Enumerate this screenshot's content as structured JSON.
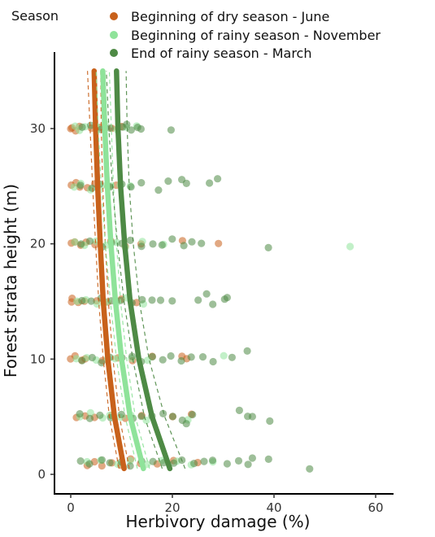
{
  "chart_data": {
    "type": "scatter",
    "xlabel": "Herbivory damage (%)",
    "ylabel": "Forest strata height (m)",
    "xlim": [
      -3,
      63
    ],
    "ylim": [
      -2,
      35.5
    ],
    "xticks": [
      0,
      20,
      40,
      60
    ],
    "yticks": [
      0,
      10,
      20,
      30
    ],
    "legend": {
      "title": "Season",
      "position": "top"
    },
    "series": [
      {
        "name": "Beginning of dry season - June",
        "color": "#c8611b",
        "fit": [
          [
            10.5,
            0.5
          ],
          [
            8.6,
            5
          ],
          [
            7.3,
            10
          ],
          [
            6.4,
            15
          ],
          [
            5.8,
            20
          ],
          [
            5.3,
            25
          ],
          [
            4.9,
            30
          ],
          [
            4.6,
            35
          ]
        ],
        "band_lower": [
          [
            9.5,
            0.5
          ],
          [
            7.6,
            5
          ],
          [
            6.4,
            10
          ],
          [
            5.5,
            15
          ],
          [
            4.9,
            20
          ],
          [
            4.3,
            25
          ],
          [
            3.8,
            30
          ],
          [
            3.3,
            35
          ]
        ],
        "band_upper": [
          [
            11.5,
            0.5
          ],
          [
            9.6,
            5
          ],
          [
            8.3,
            10
          ],
          [
            7.4,
            15
          ],
          [
            6.8,
            20
          ],
          [
            6.3,
            25
          ],
          [
            6.0,
            30
          ],
          [
            5.9,
            35
          ]
        ],
        "points": [
          [
            0,
            30
          ],
          [
            0.5,
            30
          ],
          [
            1,
            29.8
          ],
          [
            2,
            30.3
          ],
          [
            4,
            30
          ],
          [
            6,
            30.2
          ],
          [
            8,
            29.9
          ],
          [
            10,
            30.1
          ],
          [
            0,
            25
          ],
          [
            1,
            25.3
          ],
          [
            2,
            24.8
          ],
          [
            3,
            25
          ],
          [
            5,
            25.2
          ],
          [
            7,
            24.9
          ],
          [
            9,
            25.1
          ],
          [
            0,
            20
          ],
          [
            1,
            20.3
          ],
          [
            2,
            19.8
          ],
          [
            3,
            20.1
          ],
          [
            5,
            20
          ],
          [
            8,
            20.2
          ],
          [
            11,
            19.9
          ],
          [
            14,
            20.1
          ],
          [
            22,
            20.2
          ],
          [
            29,
            20
          ],
          [
            0,
            15
          ],
          [
            0.5,
            15.2
          ],
          [
            1.5,
            14.8
          ],
          [
            3,
            15
          ],
          [
            5,
            15.1
          ],
          [
            7,
            14.9
          ],
          [
            10,
            15.2
          ],
          [
            13,
            15
          ],
          [
            0,
            10
          ],
          [
            1,
            10.2
          ],
          [
            2,
            9.8
          ],
          [
            3,
            10.1
          ],
          [
            6,
            10
          ],
          [
            9,
            10.2
          ],
          [
            12,
            9.9
          ],
          [
            16,
            10.1
          ],
          [
            22,
            10.2
          ],
          [
            23,
            10
          ],
          [
            1,
            5
          ],
          [
            3,
            5.2
          ],
          [
            5,
            4.9
          ],
          [
            8,
            5.1
          ],
          [
            11,
            5
          ],
          [
            14,
            5.2
          ],
          [
            20,
            5
          ],
          [
            24,
            5.3
          ],
          [
            3,
            0.7
          ],
          [
            5,
            1
          ],
          [
            6,
            0.8
          ],
          [
            8,
            1.1
          ],
          [
            10,
            0.9
          ],
          [
            12,
            1.2
          ],
          [
            14,
            0.8
          ],
          [
            17,
            1
          ],
          [
            20,
            1.1
          ],
          [
            25,
            0.9
          ]
        ]
      },
      {
        "name": "Beginning of rainy season - November",
        "color": "#8fe39a",
        "fit": [
          [
            14.3,
            0.5
          ],
          [
            11.7,
            5
          ],
          [
            10.0,
            10
          ],
          [
            8.8,
            15
          ],
          [
            7.9,
            20
          ],
          [
            7.2,
            25
          ],
          [
            6.7,
            30
          ],
          [
            6.3,
            35
          ]
        ],
        "band_lower": [
          [
            13.1,
            0.5
          ],
          [
            10.7,
            5
          ],
          [
            9.0,
            10
          ],
          [
            7.8,
            15
          ],
          [
            6.8,
            20
          ],
          [
            6.0,
            25
          ],
          [
            5.4,
            30
          ],
          [
            5.0,
            35
          ]
        ],
        "band_upper": [
          [
            15.5,
            0.5
          ],
          [
            12.7,
            5
          ],
          [
            11.0,
            10
          ],
          [
            9.8,
            15
          ],
          [
            9.0,
            20
          ],
          [
            8.4,
            25
          ],
          [
            8.0,
            30
          ],
          [
            7.6,
            35
          ]
        ],
        "points": [
          [
            1,
            30.2
          ],
          [
            2,
            29.8
          ],
          [
            3,
            30.1
          ],
          [
            5,
            30
          ],
          [
            7,
            30.3
          ],
          [
            9,
            29.8
          ],
          [
            11,
            30
          ],
          [
            13,
            30.2
          ],
          [
            1,
            25
          ],
          [
            2,
            25.3
          ],
          [
            4,
            24.8
          ],
          [
            6,
            25.1
          ],
          [
            8,
            25
          ],
          [
            10,
            25.2
          ],
          [
            12,
            24.9
          ],
          [
            1,
            20.1
          ],
          [
            3,
            19.9
          ],
          [
            5,
            20.2
          ],
          [
            7,
            20
          ],
          [
            9,
            20.1
          ],
          [
            11,
            19.8
          ],
          [
            14,
            20.2
          ],
          [
            18,
            20
          ],
          [
            55,
            19.9
          ],
          [
            1,
            15
          ],
          [
            3,
            15.2
          ],
          [
            5,
            14.9
          ],
          [
            7,
            15.1
          ],
          [
            9,
            15
          ],
          [
            11,
            15.2
          ],
          [
            14,
            14.8
          ],
          [
            1,
            10
          ],
          [
            3,
            10.2
          ],
          [
            5,
            9.9
          ],
          [
            7,
            10.1
          ],
          [
            9,
            10
          ],
          [
            12,
            10.2
          ],
          [
            15,
            9.8
          ],
          [
            30,
            10.2
          ],
          [
            2,
            5
          ],
          [
            4,
            5.2
          ],
          [
            6,
            4.9
          ],
          [
            8,
            5.1
          ],
          [
            10,
            5
          ],
          [
            12,
            5.2
          ],
          [
            15,
            4.8
          ],
          [
            23,
            4.7
          ],
          [
            3,
            1
          ],
          [
            6,
            1.2
          ],
          [
            9,
            0.9
          ],
          [
            12,
            1.1
          ],
          [
            15,
            0.8
          ],
          [
            18,
            1.2
          ],
          [
            21,
            1
          ],
          [
            24,
            0.9
          ],
          [
            28,
            1.1
          ]
        ]
      },
      {
        "name": "End of rainy season - March",
        "color": "#4e8a45",
        "fit": [
          [
            19.5,
            0.5
          ],
          [
            16.0,
            5
          ],
          [
            13.4,
            10
          ],
          [
            11.7,
            15
          ],
          [
            10.6,
            20
          ],
          [
            9.8,
            25
          ],
          [
            9.3,
            30
          ],
          [
            9.0,
            35
          ]
        ],
        "band_lower": [
          [
            18.0,
            0.5
          ],
          [
            14.5,
            5
          ],
          [
            12.2,
            10
          ],
          [
            10.5,
            15
          ],
          [
            9.2,
            20
          ],
          [
            8.2,
            25
          ],
          [
            7.5,
            30
          ],
          [
            7.0,
            35
          ]
        ],
        "band_upper": [
          [
            22.5,
            0.5
          ],
          [
            18.5,
            5
          ],
          [
            15.4,
            10
          ],
          [
            13.5,
            15
          ],
          [
            12.3,
            20
          ],
          [
            11.5,
            25
          ],
          [
            11.1,
            30
          ],
          [
            10.9,
            35
          ]
        ],
        "points": [
          [
            2,
            30
          ],
          [
            4,
            30.2
          ],
          [
            6,
            29.8
          ],
          [
            8,
            30.1
          ],
          [
            10,
            30
          ],
          [
            11,
            30.3
          ],
          [
            12,
            29.8
          ],
          [
            13,
            30.1
          ],
          [
            14,
            30
          ],
          [
            19.5,
            30
          ],
          [
            2,
            25.2
          ],
          [
            4,
            24.8
          ],
          [
            6,
            25.1
          ],
          [
            8,
            25
          ],
          [
            10,
            25.3
          ],
          [
            12,
            24.9
          ],
          [
            14,
            25.2
          ],
          [
            17,
            24.7
          ],
          [
            19,
            25.5
          ],
          [
            22,
            25.6
          ],
          [
            23,
            25.3
          ],
          [
            27,
            25.3
          ],
          [
            29,
            25.6
          ],
          [
            2,
            20
          ],
          [
            4,
            20.2
          ],
          [
            6,
            19.8
          ],
          [
            8,
            20.1
          ],
          [
            10,
            20
          ],
          [
            12,
            20.2
          ],
          [
            14,
            19.9
          ],
          [
            16,
            20.1
          ],
          [
            18,
            20
          ],
          [
            20,
            20.3
          ],
          [
            22,
            19.8
          ],
          [
            24,
            20.1
          ],
          [
            26,
            20
          ],
          [
            39,
            19.8
          ],
          [
            2,
            15.1
          ],
          [
            4,
            14.9
          ],
          [
            6,
            15.2
          ],
          [
            8,
            15
          ],
          [
            10,
            15.1
          ],
          [
            12,
            14.8
          ],
          [
            14,
            15.2
          ],
          [
            16,
            15
          ],
          [
            18,
            15.1
          ],
          [
            20,
            14.9
          ],
          [
            25,
            15
          ],
          [
            27,
            15.6
          ],
          [
            28,
            14.8
          ],
          [
            30,
            15.3
          ],
          [
            31,
            15.2
          ],
          [
            2,
            10
          ],
          [
            4,
            10.2
          ],
          [
            6,
            9.8
          ],
          [
            8,
            10.1
          ],
          [
            10,
            10
          ],
          [
            12,
            10.2
          ],
          [
            14,
            9.9
          ],
          [
            16,
            10.1
          ],
          [
            18,
            10
          ],
          [
            20,
            10.2
          ],
          [
            22,
            9.8
          ],
          [
            24,
            10.1
          ],
          [
            26,
            10.2
          ],
          [
            28,
            9.9
          ],
          [
            32,
            10.1
          ],
          [
            35,
            10.6
          ],
          [
            2,
            5.2
          ],
          [
            4,
            4.8
          ],
          [
            6,
            5.1
          ],
          [
            8,
            5
          ],
          [
            10,
            5.2
          ],
          [
            12,
            4.9
          ],
          [
            14,
            5.1
          ],
          [
            16,
            5
          ],
          [
            18,
            5.2
          ],
          [
            20,
            5
          ],
          [
            22,
            4.8
          ],
          [
            23,
            4.4
          ],
          [
            24,
            5.1
          ],
          [
            33,
            5.6
          ],
          [
            35,
            5.1
          ],
          [
            36,
            5
          ],
          [
            39,
            4.5
          ],
          [
            2,
            1.1
          ],
          [
            4,
            0.9
          ],
          [
            6,
            1.2
          ],
          [
            8,
            1
          ],
          [
            10,
            1.1
          ],
          [
            12,
            0.8
          ],
          [
            14,
            1.2
          ],
          [
            16,
            1
          ],
          [
            18,
            1.1
          ],
          [
            20,
            0.9
          ],
          [
            22,
            1.2
          ],
          [
            24,
            1
          ],
          [
            26,
            1.1
          ],
          [
            28,
            1.3
          ],
          [
            31,
            1
          ],
          [
            33,
            1.2
          ],
          [
            35,
            0.9
          ],
          [
            36,
            1.4
          ],
          [
            39,
            1.2
          ],
          [
            47,
            0.4
          ]
        ]
      }
    ]
  }
}
